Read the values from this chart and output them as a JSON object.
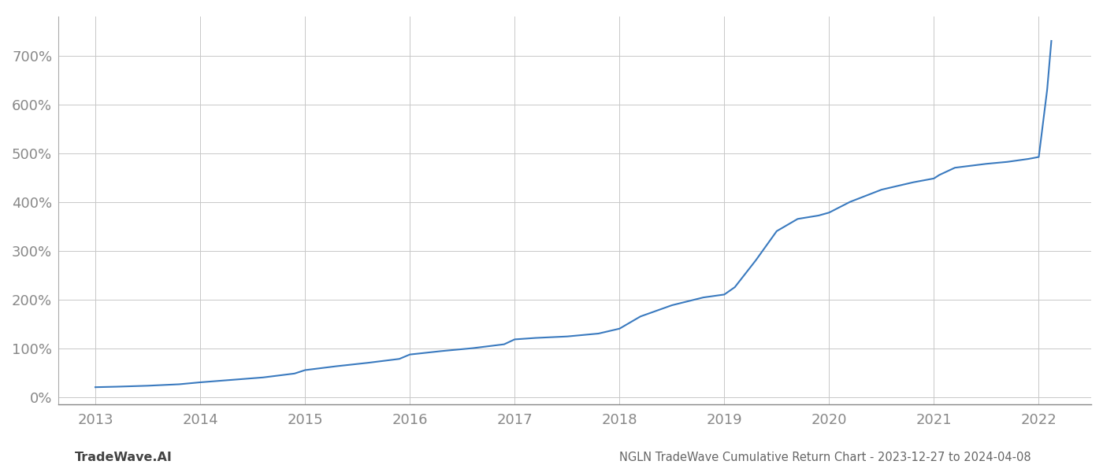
{
  "title": "NGLN TradeWave Cumulative Return Chart - 2023-12-27 to 2024-04-08",
  "watermark": "TradeWave.AI",
  "line_color": "#3a7abf",
  "background_color": "#ffffff",
  "grid_color": "#c8c8c8",
  "x_start_year": 2013,
  "x_end_year": 2022,
  "y_ticks": [
    0,
    100,
    200,
    300,
    400,
    500,
    600,
    700
  ],
  "y_lim": [
    -15,
    780
  ],
  "xlim_left": 2012.65,
  "xlim_right": 2022.5,
  "data_points": {
    "years": [
      2013.0,
      2013.2,
      2013.5,
      2013.8,
      2014.0,
      2014.3,
      2014.6,
      2014.9,
      2015.0,
      2015.3,
      2015.6,
      2015.9,
      2016.0,
      2016.3,
      2016.6,
      2016.9,
      2017.0,
      2017.2,
      2017.5,
      2017.8,
      2018.0,
      2018.2,
      2018.5,
      2018.8,
      2019.0,
      2019.1,
      2019.3,
      2019.5,
      2019.7,
      2019.9,
      2020.0,
      2020.2,
      2020.5,
      2020.8,
      2021.0,
      2021.05,
      2021.2,
      2021.5,
      2021.7,
      2021.9,
      2022.0,
      2022.08,
      2022.12
    ],
    "values": [
      20,
      21,
      23,
      26,
      30,
      35,
      40,
      48,
      55,
      63,
      70,
      78,
      87,
      94,
      100,
      108,
      118,
      121,
      124,
      130,
      140,
      165,
      188,
      204,
      210,
      225,
      280,
      340,
      365,
      372,
      378,
      400,
      425,
      440,
      448,
      455,
      470,
      478,
      482,
      488,
      492,
      630,
      730
    ]
  }
}
